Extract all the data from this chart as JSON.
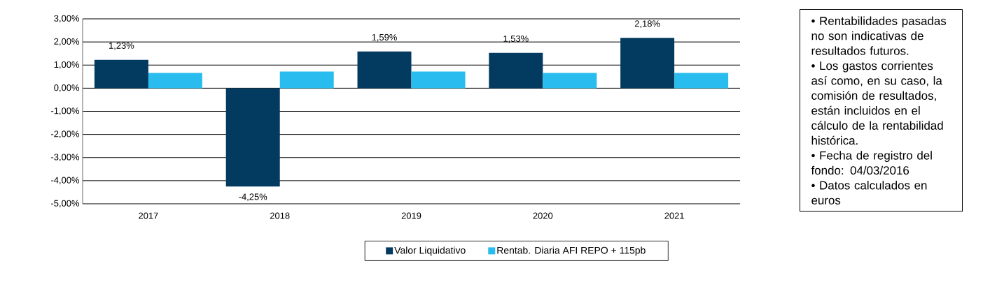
{
  "chart_data": {
    "type": "bar",
    "categories": [
      "2017",
      "2018",
      "2019",
      "2020",
      "2021"
    ],
    "series": [
      {
        "name": "Valor Liquidativo",
        "color": "#033a60",
        "values": [
          1.23,
          -4.25,
          1.59,
          1.53,
          2.18
        ],
        "value_labels": [
          "1,23%",
          "-4,25%",
          "1,59%",
          "1,53%",
          "2,18%"
        ]
      },
      {
        "name": "Rentab. Diaria AFI REPO + 115pb",
        "color": "#29bdef",
        "values": [
          0.66,
          0.72,
          0.72,
          0.66,
          0.66
        ]
      }
    ],
    "ylim": [
      -5,
      3
    ],
    "yticks": [
      {
        "value": -5,
        "label": "-5,00%"
      },
      {
        "value": -4,
        "label": "-4,00%"
      },
      {
        "value": -3,
        "label": "-3,00%"
      },
      {
        "value": -2,
        "label": "-2,00%"
      },
      {
        "value": -1,
        "label": "-1,00%"
      },
      {
        "value": 0,
        "label": "0,00%"
      },
      {
        "value": 1,
        "label": "1,00%"
      },
      {
        "value": 2,
        "label": "2,00%"
      },
      {
        "value": 3,
        "label": "3,00%"
      }
    ],
    "grid": "y",
    "legend": "bottom",
    "annotations": [
      "• Rentabilidades pasadas no son indicativas de resultados futuros.",
      "• Los gastos corrientes así como, en su caso, la comisión de resultados, están incluidos en el cálculo de la rentabilidad histórica.",
      "• Fecha de registro del fondo: 04/03/2016",
      "• Datos calculados en euros"
    ]
  }
}
